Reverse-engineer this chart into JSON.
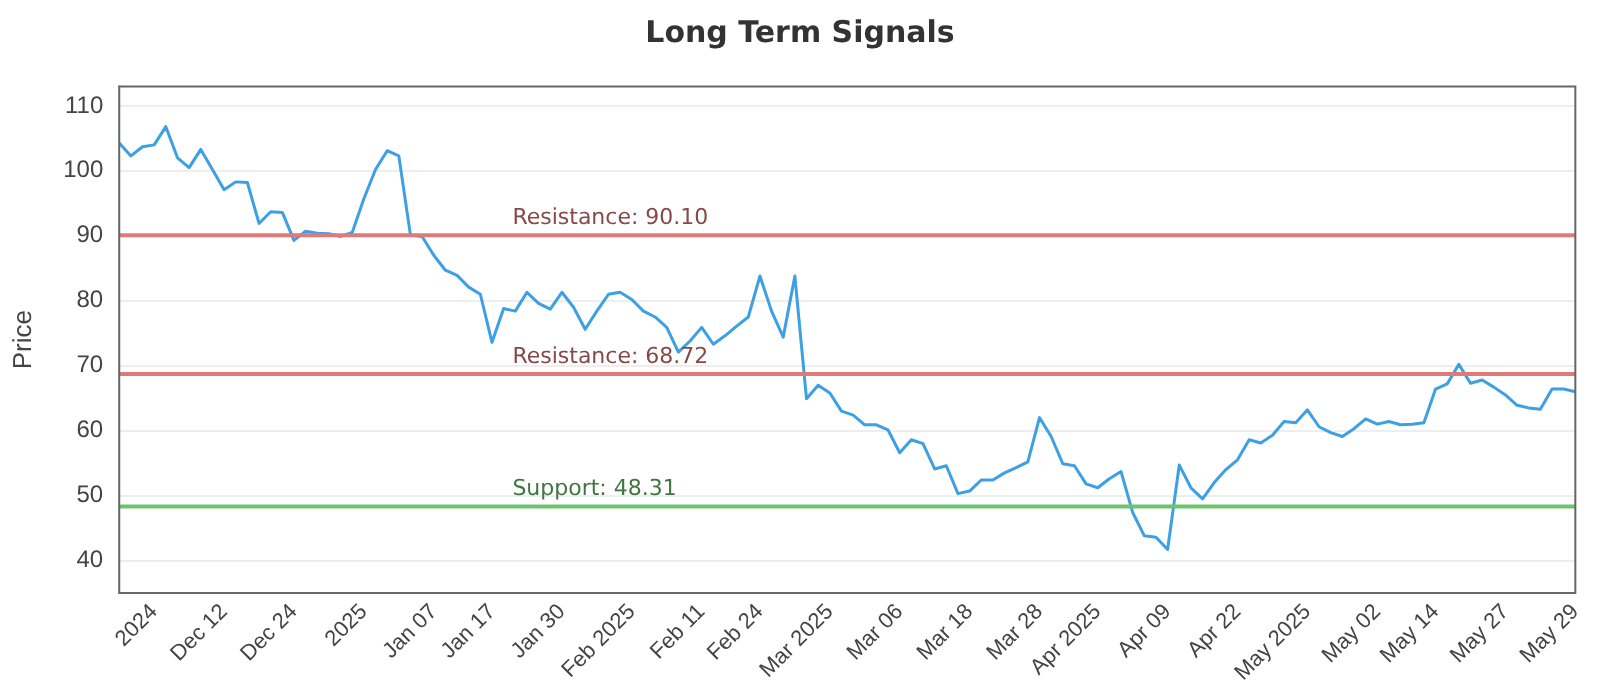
{
  "chart_data": {
    "type": "line",
    "title": "Long Term Signals",
    "ylabel": "Price",
    "categories": [
      null,
      null,
      null,
      "2024",
      null,
      null,
      null,
      null,
      null,
      "Dec 12",
      null,
      null,
      null,
      null,
      null,
      "Dec 24",
      null,
      null,
      null,
      null,
      null,
      "2025",
      null,
      null,
      null,
      null,
      null,
      "Jan 07",
      null,
      null,
      null,
      null,
      "Jan 17",
      null,
      null,
      null,
      null,
      null,
      "Jan 30",
      null,
      null,
      null,
      null,
      null,
      "Feb 2025",
      null,
      null,
      null,
      null,
      null,
      "Feb 11",
      null,
      null,
      null,
      null,
      "Feb 24",
      null,
      null,
      null,
      null,
      null,
      "Mar 2025",
      null,
      null,
      null,
      null,
      null,
      "Mar 06",
      null,
      null,
      null,
      null,
      null,
      "Mar 18",
      null,
      null,
      null,
      null,
      null,
      "Mar 28",
      null,
      null,
      null,
      null,
      "Apr 2025",
      null,
      null,
      null,
      null,
      null,
      "Apr 09",
      null,
      null,
      null,
      null,
      null,
      "Apr 22",
      null,
      null,
      null,
      null,
      null,
      "May 2025",
      null,
      null,
      null,
      null,
      null,
      "May 02",
      null,
      null,
      null,
      null,
      "May 14",
      null,
      null,
      null,
      null,
      null,
      "May 27",
      null,
      null,
      null,
      null,
      null,
      "May 29"
    ],
    "series": [
      {
        "color": "#3ea0e4",
        "values": [
          104.3,
          102.3,
          103.7,
          104,
          106.8,
          102,
          100.5,
          103.3,
          100.2,
          97.1,
          98.3,
          98.2,
          91.9,
          93.7,
          93.6,
          89.3,
          90.7,
          90.4,
          90.3,
          89.9,
          90.5,
          95.7,
          100.2,
          103.1,
          102.3,
          90.1,
          89.9,
          87,
          84.7,
          83.9,
          82.1,
          81,
          73.6,
          78.8,
          78.4,
          81.3,
          79.6,
          78.7,
          81.3,
          79,
          75.6,
          78.4,
          81,
          81.3,
          80.2,
          78.4,
          77.5,
          75.9,
          72.1,
          73.8,
          75.9,
          73.3,
          74.6,
          76.1,
          77.5,
          83.8,
          78.4,
          74.4,
          83.8,
          64.9,
          67,
          65.8,
          63,
          62.4,
          60.9,
          60.9,
          60.1,
          56.6,
          58.6,
          58,
          54.1,
          54.6,
          50.3,
          50.7,
          52.4,
          52.4,
          53.5,
          54.3,
          55.2,
          62,
          59.1,
          54.9,
          54.6,
          51.8,
          51.2,
          52.6,
          53.7,
          47.4,
          43.8,
          43.6,
          41.7,
          54.7,
          51.2,
          49.5,
          52,
          54,
          55.5,
          58.6,
          58.1,
          59.3,
          61.4,
          61.2,
          63.2,
          60.6,
          59.7,
          59.1,
          60.3,
          61.8,
          61,
          61.4,
          60.9,
          61,
          61.2,
          66.4,
          67.2,
          70.2,
          67.3,
          67.8,
          66.7,
          65.5,
          63.9,
          63.5,
          63.3,
          66.4,
          66.4,
          66
        ]
      }
    ],
    "ylim": [
      35,
      113
    ],
    "yticks": [
      40,
      50,
      60,
      70,
      80,
      90,
      100,
      110
    ],
    "grid": "y",
    "legend": false,
    "marker": "none",
    "line_style": "solid",
    "ref_lines": [
      {
        "axis": "y",
        "value": 90.1,
        "label": "Resistance: 90.10",
        "color": "#e07a7a"
      },
      {
        "axis": "y",
        "value": 68.72,
        "label": "Resistance: 68.72",
        "color": "#e07a7a"
      },
      {
        "axis": "y",
        "value": 48.31,
        "label": "Support: 48.31",
        "color": "#6cc46c"
      }
    ]
  }
}
